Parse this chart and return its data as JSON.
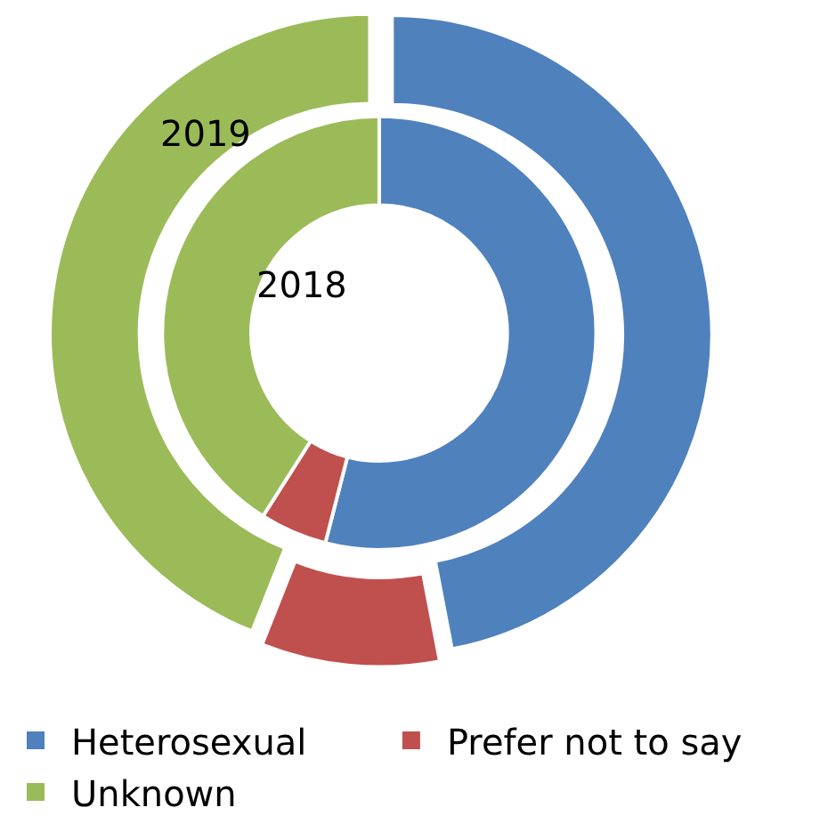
{
  "chart_data": {
    "type": "donut",
    "categories": [
      "Heterosexual",
      "Prefer not to say",
      "Unknown"
    ],
    "colors": [
      "#4f81bd",
      "#c0504d",
      "#9bbb59"
    ],
    "series": [
      {
        "name": "2019",
        "values": [
          47,
          9,
          44
        ]
      },
      {
        "name": "2018",
        "values": [
          54,
          5,
          41
        ]
      }
    ],
    "legend": "bottom"
  }
}
